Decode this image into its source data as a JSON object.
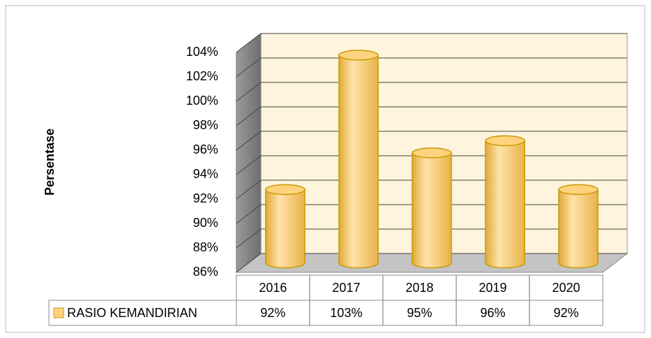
{
  "chart_data": {
    "type": "bar3d",
    "y_label": "Persentase",
    "categories": [
      "2016",
      "2017",
      "2018",
      "2019",
      "2020"
    ],
    "series": [
      {
        "name": "RASIO KEMANDIRIAN",
        "color": "#ffd27f",
        "values": [
          92,
          103,
          95,
          96,
          92
        ],
        "value_labels": [
          "92%",
          "103%",
          "95%",
          "96%",
          "92%"
        ]
      }
    ],
    "ylim": [
      86,
      104
    ],
    "yticks": [
      {
        "value": 86,
        "label": "86%"
      },
      {
        "value": 88,
        "label": "88%"
      },
      {
        "value": 90,
        "label": "90%"
      },
      {
        "value": 92,
        "label": "92%"
      },
      {
        "value": 94,
        "label": "94%"
      },
      {
        "value": 96,
        "label": "96%"
      },
      {
        "value": 98,
        "label": "98%"
      },
      {
        "value": 100,
        "label": "100%"
      },
      {
        "value": 102,
        "label": "102%"
      },
      {
        "value": 104,
        "label": "104%"
      }
    ],
    "grid": true
  }
}
